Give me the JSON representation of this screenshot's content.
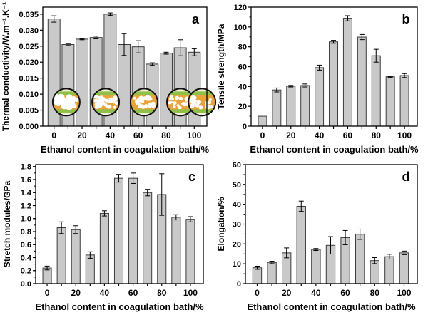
{
  "figure": {
    "background": "#ffffff",
    "bar_fill": "#c9c9c9",
    "bar_stroke": "#3c3c3c",
    "error_color": "#000000",
    "axis_color": "#000000",
    "xlabel": "Ethanol content in coagulation bath/%"
  },
  "chart_data": [
    {
      "type": "bar",
      "panel_letter": "a",
      "ylabel": "Thermal conductivity/W.m⁻¹.K⁻¹",
      "xlabel": "Ethanol content in coagulation bath/%",
      "categories": [
        0,
        10,
        20,
        30,
        40,
        50,
        60,
        70,
        80,
        90,
        100
      ],
      "values": [
        0.0335,
        0.0255,
        0.0272,
        0.0277,
        0.035,
        0.0255,
        0.0248,
        0.0194,
        0.0228,
        0.0245,
        0.0231
      ],
      "errors": [
        0.001,
        0.0003,
        0.0002,
        0.0004,
        0.0004,
        0.0034,
        0.0019,
        0.0004,
        0.0003,
        0.0025,
        0.0011
      ],
      "ylim": [
        0,
        0.0372
      ],
      "ytick_values": [
        0,
        0.005,
        0.01,
        0.015,
        0.02,
        0.025,
        0.03,
        0.035
      ],
      "ytick_labels": [
        "0.000",
        "0.005",
        "0.010",
        "0.015",
        "0.020",
        "0.025",
        "0.030",
        "0.035"
      ],
      "minor_ytick_step": 0,
      "xtick_values": [
        0,
        10,
        20,
        30,
        40,
        50,
        60,
        70,
        80,
        90,
        100
      ],
      "xtick_labeled": [
        0,
        20,
        40,
        60,
        80,
        100
      ],
      "bar_width_units": 8.6,
      "grid": false,
      "inset": {
        "description": "five circular cross-section micrographs showing pore structure",
        "center_y_data": 0.0075,
        "radius_px": 19,
        "fill": "#e9a33c",
        "band_color": "#8fc04a",
        "cap_color": "#f6f0dc",
        "dot_color": "#ffffff",
        "outline": "#111111",
        "circles": [
          {
            "x_frac": 0.143,
            "dots": 26,
            "dot_r": [
              3.0,
              6.0
            ]
          },
          {
            "x_frac": 0.383,
            "dots": 32,
            "dot_r": [
              1.8,
              3.4
            ]
          },
          {
            "x_frac": 0.617,
            "dots": 27,
            "dot_r": [
              2.0,
              3.6
            ]
          },
          {
            "x_frac": 0.839,
            "dots": 31,
            "dot_r": [
              1.6,
              3.0
            ]
          },
          {
            "x_frac": 0.97,
            "dots": 18,
            "dot_r": [
              2.2,
              4.0
            ]
          }
        ]
      }
    },
    {
      "type": "bar",
      "panel_letter": "b",
      "ylabel": "Tensile strength/MPa",
      "xlabel": "Ethanol content in coagulation bath/%",
      "categories": [
        0,
        10,
        20,
        30,
        40,
        50,
        60,
        70,
        80,
        90,
        100
      ],
      "values": [
        10,
        36.5,
        40.3,
        41,
        59,
        85,
        108.8,
        89.8,
        71,
        49.8,
        51
      ],
      "errors": [
        0,
        2,
        0.8,
        1.5,
        2.5,
        1.5,
        2.6,
        2.6,
        6.5,
        0.5,
        2
      ],
      "ylim": [
        0,
        120
      ],
      "ytick_values": [
        0,
        20,
        40,
        60,
        80,
        100,
        120
      ],
      "ytick_labels": [
        "0",
        "20",
        "40",
        "60",
        "80",
        "100",
        "120"
      ],
      "minor_ytick_step": 10,
      "xtick_values": [
        0,
        10,
        20,
        30,
        40,
        50,
        60,
        70,
        80,
        90,
        100
      ],
      "xtick_labeled": [
        0,
        20,
        40,
        60,
        80,
        100
      ],
      "bar_width_units": 6,
      "grid": false
    },
    {
      "type": "bar",
      "panel_letter": "c",
      "ylabel": "Stretch modules/GPa",
      "xlabel": "Ethanol content in coagulation bath/%",
      "categories": [
        0,
        10,
        20,
        30,
        40,
        50,
        60,
        70,
        80,
        90,
        100
      ],
      "values": [
        0.24,
        0.86,
        0.83,
        0.44,
        1.08,
        1.62,
        1.62,
        1.4,
        1.37,
        1.02,
        0.99
      ],
      "errors": [
        0.03,
        0.09,
        0.06,
        0.05,
        0.04,
        0.06,
        0.08,
        0.05,
        0.32,
        0.04,
        0.04
      ],
      "ylim": [
        0,
        1.83
      ],
      "ytick_values": [
        0,
        0.2,
        0.4,
        0.6,
        0.8,
        1.0,
        1.2,
        1.4,
        1.6,
        1.8
      ],
      "ytick_labels": [
        "0.0",
        "0.2",
        "0.4",
        "0.6",
        "0.8",
        "1.0",
        "1.2",
        "1.4",
        "1.6",
        "1.8"
      ],
      "minor_ytick_step": 0.1,
      "xtick_values": [
        0,
        10,
        20,
        30,
        40,
        50,
        60,
        70,
        80,
        90,
        100
      ],
      "xtick_labeled": [
        0,
        20,
        40,
        60,
        80,
        100
      ],
      "bar_width_units": 6,
      "grid": false
    },
    {
      "type": "bar",
      "panel_letter": "d",
      "ylabel": "Elongation/%",
      "xlabel": "Ethanol content in coagulation bath/%",
      "categories": [
        0,
        10,
        20,
        30,
        40,
        50,
        60,
        70,
        80,
        90,
        100
      ],
      "values": [
        8,
        10.7,
        15.5,
        39,
        17.2,
        19.3,
        23.2,
        24.9,
        11.6,
        13.6,
        15.5
      ],
      "errors": [
        0.8,
        0.6,
        2.5,
        2.6,
        0.5,
        4.4,
        3.6,
        2.6,
        1.5,
        1.2,
        0.9
      ],
      "ylim": [
        0,
        60
      ],
      "ytick_values": [
        0,
        10,
        20,
        30,
        40,
        50,
        60
      ],
      "ytick_labels": [
        "0",
        "10",
        "20",
        "30",
        "40",
        "50",
        "60"
      ],
      "minor_ytick_step": 5,
      "xtick_values": [
        0,
        10,
        20,
        30,
        40,
        50,
        60,
        70,
        80,
        90,
        100
      ],
      "xtick_labeled": [
        0,
        20,
        40,
        60,
        80,
        100
      ],
      "bar_width_units": 6,
      "grid": false
    }
  ]
}
